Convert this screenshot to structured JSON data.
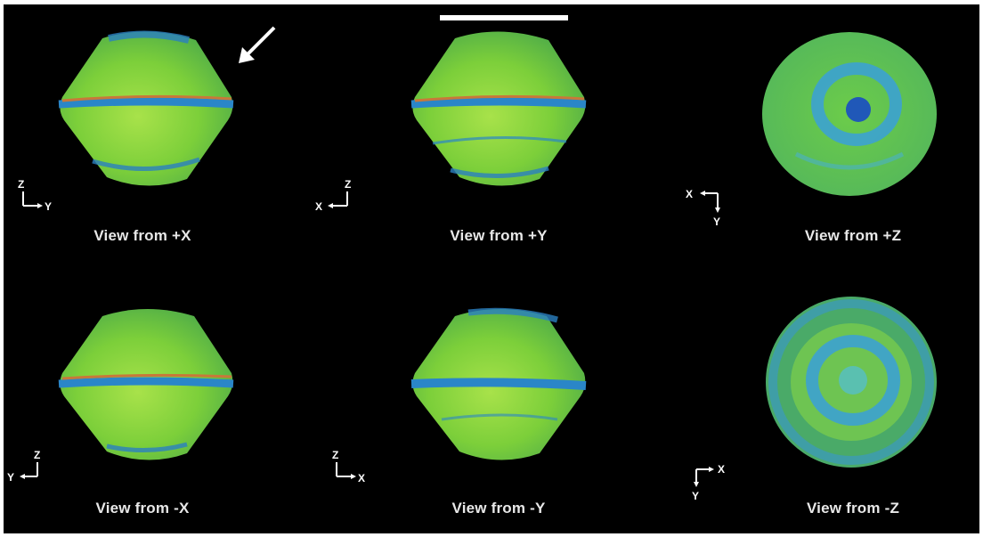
{
  "panels": [
    {
      "caption": "View from +X",
      "axis_labels": [
        "Z",
        "Y"
      ]
    },
    {
      "caption": "View from +Y",
      "axis_labels": [
        "Z",
        "X"
      ]
    },
    {
      "caption": "View from +Z",
      "axis_labels": [
        "X",
        "Y"
      ]
    },
    {
      "caption": "View from -X",
      "axis_labels": [
        "Z",
        "Y"
      ]
    },
    {
      "caption": "View from -Y",
      "axis_labels": [
        "Z",
        "X"
      ]
    },
    {
      "caption": "View from -Z",
      "axis_labels": [
        "X",
        "Y"
      ]
    }
  ],
  "colors": {
    "background": "#000000",
    "surface_green": "#7ccf3a",
    "band_blue": "#2a86c8",
    "ridge_orange": "#c8783a"
  }
}
